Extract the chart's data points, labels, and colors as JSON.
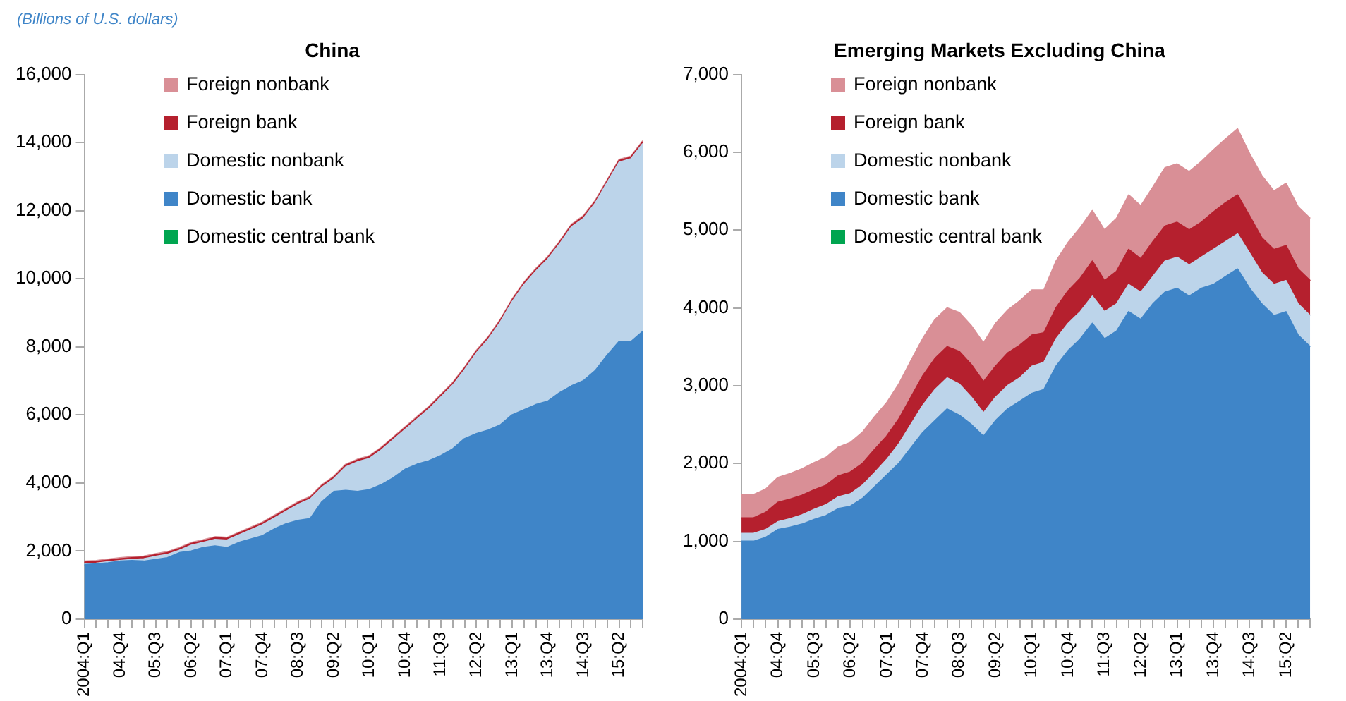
{
  "chart_data": [
    {
      "type": "area",
      "title": "China",
      "annotations": [
        "(Billions of U.S. dollars)"
      ],
      "stacked": true,
      "legend": "top left",
      "grid": false,
      "marker": "none",
      "categories": [
        "2004:Q1",
        null,
        null,
        "04:Q4",
        null,
        null,
        "05:Q3",
        null,
        null,
        "06:Q2",
        null,
        null,
        "07:Q1",
        null,
        null,
        "07:Q4",
        null,
        null,
        "08:Q3",
        null,
        null,
        "09:Q2",
        null,
        null,
        "10:Q1",
        null,
        null,
        "10:Q4",
        null,
        null,
        "11:Q3",
        null,
        null,
        "12:Q2",
        null,
        null,
        "13:Q1",
        null,
        null,
        "13:Q4",
        null,
        null,
        "14:Q3",
        null,
        null,
        "15:Q2",
        null,
        null
      ],
      "ylim": [
        0,
        16000
      ],
      "yticks": [
        0,
        {
          "value": 2000,
          "label": "2,000"
        },
        {
          "value": 4000,
          "label": "4,000"
        },
        {
          "value": 6000,
          "label": "6,000"
        },
        {
          "value": 8000,
          "label": "8,000"
        },
        {
          "value": 10000,
          "label": "10,000"
        },
        {
          "value": 12000,
          "label": "12,000"
        },
        {
          "value": 14000,
          "label": "14,000"
        },
        {
          "value": 16000,
          "label": "16,000"
        }
      ],
      "series": [
        {
          "name": "Domestic central bank",
          "color": "#00a550",
          "values": [
            null,
            null,
            null,
            null,
            null,
            null,
            null,
            null,
            null,
            null,
            null,
            null,
            null,
            null,
            null,
            null,
            null,
            null,
            null,
            null,
            null,
            null,
            null,
            null,
            null,
            null,
            null,
            null,
            null,
            null,
            null,
            null,
            null,
            null,
            null,
            null,
            null,
            null,
            null,
            null,
            null,
            null,
            null,
            null,
            null,
            null,
            null,
            null
          ]
        },
        {
          "name": "Domestic bank",
          "color": "#3f85c8",
          "values": [
            1600,
            1620,
            1650,
            1700,
            1720,
            1700,
            1750,
            1800,
            1950,
            2000,
            2100,
            2150,
            2100,
            2250,
            2350,
            2450,
            2650,
            2800,
            2900,
            2950,
            3450,
            3750,
            3780,
            3750,
            3800,
            3950,
            4150,
            4400,
            4550,
            4650,
            4800,
            5000,
            5300,
            5450,
            5550,
            5700,
            6000,
            6150,
            6300,
            6400,
            6650,
            6850,
            7000,
            7300,
            7750,
            8150,
            8150,
            8450
          ]
        },
        {
          "name": "Domestic nonbank",
          "color": "#bcd4ea",
          "values": [
            20,
            20,
            30,
            20,
            30,
            70,
            90,
            100,
            70,
            170,
            150,
            190,
            220,
            220,
            270,
            320,
            320,
            370,
            470,
            570,
            420,
            370,
            690,
            870,
            920,
            1020,
            1120,
            1170,
            1320,
            1520,
            1720,
            1870,
            2020,
            2370,
            2670,
            3020,
            3320,
            3670,
            3920,
            4170,
            4370,
            4670,
            4770,
            4920,
            5070,
            5270,
            5370,
            5520
          ]
        },
        {
          "name": "Foreign bank",
          "color": "#b5202e",
          "values": [
            50,
            50,
            50,
            50,
            50,
            50,
            50,
            50,
            50,
            50,
            50,
            50,
            50,
            50,
            50,
            50,
            50,
            50,
            50,
            50,
            50,
            50,
            50,
            50,
            50,
            50,
            50,
            50,
            50,
            50,
            50,
            50,
            50,
            50,
            50,
            50,
            50,
            50,
            50,
            50,
            50,
            50,
            50,
            50,
            50,
            50,
            50,
            50
          ]
        },
        {
          "name": "Foreign nonbank",
          "color": "#d98f96",
          "values": [
            30,
            30,
            30,
            30,
            30,
            30,
            30,
            30,
            30,
            30,
            30,
            30,
            30,
            30,
            30,
            30,
            30,
            30,
            30,
            30,
            30,
            30,
            30,
            30,
            30,
            30,
            30,
            30,
            30,
            30,
            30,
            30,
            30,
            30,
            30,
            30,
            30,
            30,
            30,
            30,
            30,
            30,
            30,
            30,
            30,
            30,
            30,
            30
          ]
        }
      ]
    },
    {
      "type": "area",
      "title": "Emerging Markets Excluding China",
      "stacked": true,
      "legend": "top left",
      "grid": false,
      "marker": "none",
      "categories": [
        "2004:Q1",
        null,
        null,
        "04:Q4",
        null,
        null,
        "05:Q3",
        null,
        null,
        "06:Q2",
        null,
        null,
        "07:Q1",
        null,
        null,
        "07:Q4",
        null,
        null,
        "08:Q3",
        null,
        null,
        "09:Q2",
        null,
        null,
        "10:Q1",
        null,
        null,
        "10:Q4",
        null,
        null,
        "11:Q3",
        null,
        null,
        "12:Q2",
        null,
        null,
        "13:Q1",
        null,
        null,
        "13:Q4",
        null,
        null,
        "14:Q3",
        null,
        null,
        "15:Q2",
        null,
        null
      ],
      "ylim": [
        0,
        7000
      ],
      "yticks": [
        0,
        {
          "value": 1000,
          "label": "1,000"
        },
        {
          "value": 2000,
          "label": "2,000"
        },
        {
          "value": 3000,
          "label": "3,000"
        },
        {
          "value": 4000,
          "label": "4,000"
        },
        {
          "value": 5000,
          "label": "5,000"
        },
        {
          "value": 6000,
          "label": "6,000"
        },
        {
          "value": 7000,
          "label": "7,000"
        }
      ],
      "series": [
        {
          "name": "Domestic central bank",
          "color": "#00a550",
          "values": [
            null,
            null,
            null,
            null,
            null,
            null,
            null,
            null,
            null,
            null,
            null,
            null,
            null,
            null,
            null,
            null,
            null,
            null,
            null,
            null,
            null,
            null,
            null,
            null,
            null,
            null,
            null,
            null,
            null,
            null,
            null,
            null,
            null,
            null,
            null,
            null,
            null,
            null,
            null,
            null,
            null,
            null,
            null,
            null,
            null,
            null,
            null,
            null
          ]
        },
        {
          "name": "Domestic bank",
          "color": "#3f85c8",
          "values": [
            1000,
            1000,
            1050,
            1150,
            1180,
            1220,
            1280,
            1330,
            1420,
            1450,
            1550,
            1700,
            1850,
            2000,
            2200,
            2400,
            2550,
            2700,
            2620,
            2500,
            2350,
            2550,
            2700,
            2800,
            2900,
            2950,
            3250,
            3450,
            3600,
            3800,
            3600,
            3700,
            3950,
            3850,
            4050,
            4200,
            4250,
            4150,
            4250,
            4300,
            4400,
            4500,
            4250,
            4050,
            3900,
            3950,
            3650,
            3500
          ]
        },
        {
          "name": "Domestic nonbank",
          "color": "#bcd4ea",
          "values": [
            100,
            100,
            100,
            100,
            110,
            120,
            130,
            140,
            150,
            160,
            170,
            180,
            200,
            250,
            300,
            350,
            400,
            400,
            400,
            350,
            300,
            300,
            300,
            300,
            350,
            350,
            350,
            350,
            350,
            350,
            350,
            350,
            350,
            350,
            350,
            400,
            400,
            400,
            400,
            450,
            450,
            450,
            450,
            400,
            400,
            400,
            400,
            400
          ]
        },
        {
          "name": "Foreign bank",
          "color": "#b5202e",
          "values": [
            200,
            200,
            220,
            250,
            250,
            250,
            250,
            250,
            270,
            280,
            280,
            300,
            300,
            320,
            350,
            380,
            400,
            400,
            420,
            420,
            400,
            400,
            420,
            420,
            400,
            380,
            400,
            420,
            430,
            450,
            400,
            420,
            450,
            430,
            450,
            450,
            450,
            450,
            450,
            480,
            500,
            500,
            480,
            450,
            450,
            450,
            450,
            450
          ]
        },
        {
          "name": "Foreign nonbank",
          "color": "#d98f96",
          "values": [
            300,
            300,
            300,
            320,
            330,
            340,
            350,
            360,
            370,
            380,
            400,
            420,
            430,
            450,
            470,
            480,
            500,
            500,
            500,
            500,
            500,
            550,
            550,
            570,
            580,
            550,
            600,
            620,
            650,
            650,
            650,
            680,
            700,
            680,
            700,
            750,
            750,
            750,
            780,
            800,
            820,
            850,
            800,
            800,
            750,
            800,
            800,
            800
          ]
        }
      ]
    }
  ]
}
